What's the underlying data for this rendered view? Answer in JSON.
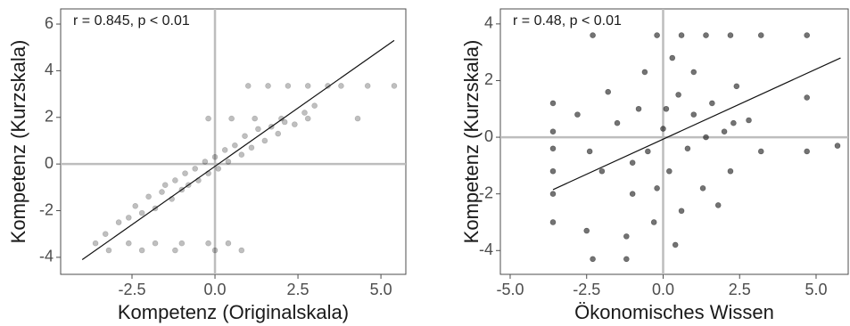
{
  "chart_data": [
    {
      "type": "scatter",
      "annotation": "r = 0.845, p < 0.01",
      "x_label": "Kompetenz (Originalskala)",
      "y_label": "Kompetenz (Kurzskala)",
      "xlim": [
        -4.65,
        5.75
      ],
      "ylim": [
        -4.73,
        6.65
      ],
      "xticks": [
        -2.5,
        {
          "value": 0,
          "label": "0.0"
        },
        2.5,
        {
          "value": 5,
          "label": "5.0"
        }
      ],
      "yticks": [
        -4,
        -2,
        0,
        2,
        4,
        6
      ],
      "reference_x": 0,
      "reference_y": 0,
      "color": "#000000",
      "opacity": 0.25,
      "x": [
        -3.6,
        -3.3,
        -2.9,
        -2.6,
        -2.4,
        -2.2,
        -2.0,
        -1.8,
        -1.6,
        -1.5,
        -1.3,
        -1.2,
        -1.0,
        -0.9,
        -0.8,
        -0.6,
        -0.5,
        -0.3,
        -0.2,
        0.0,
        0.1,
        0.3,
        0.4,
        0.6,
        0.8,
        0.9,
        1.1,
        1.3,
        1.5,
        1.7,
        1.9,
        2.1,
        2.4,
        2.7,
        3.0,
        1.0,
        1.6,
        2.2,
        2.8,
        3.4,
        3.8,
        -0.2,
        0.5,
        1.2,
        2.0,
        2.8,
        -2.6,
        -1.8,
        -1.0,
        -0.2,
        0.4,
        -3.2,
        -2.2,
        -1.2,
        0.0,
        0.8,
        4.6,
        5.4,
        4.3
      ],
      "values": [
        -3.4,
        -3.0,
        -2.5,
        -2.3,
        -1.8,
        -2.1,
        -1.4,
        -1.9,
        -1.2,
        -0.9,
        -1.5,
        -0.7,
        -1.1,
        -0.4,
        -0.9,
        -0.2,
        -0.7,
        0.1,
        -0.4,
        0.3,
        -0.2,
        0.6,
        0.1,
        0.8,
        0.4,
        1.2,
        0.7,
        1.5,
        1.0,
        1.6,
        1.3,
        1.8,
        1.7,
        2.2,
        2.5,
        3.35,
        3.35,
        3.35,
        3.35,
        3.35,
        3.35,
        1.95,
        1.95,
        1.95,
        1.95,
        1.95,
        -3.4,
        -3.4,
        -3.4,
        -3.4,
        -3.4,
        -3.7,
        -3.7,
        -3.7,
        -3.7,
        -3.7,
        3.35,
        3.35,
        1.95
      ],
      "fit_line": {
        "x": [
          -4.0,
          5.4
        ],
        "y": [
          -4.1,
          5.3
        ]
      }
    },
    {
      "type": "scatter",
      "annotation": "r = 0.48, p < 0.01",
      "x_label": "Ökonomisches Wissen",
      "y_label": "Kompetenz (Kurzskala)",
      "xlim": [
        -5.32,
        6.05
      ],
      "ylim": [
        -4.84,
        4.53
      ],
      "xticks": [
        {
          "value": -5,
          "label": "-5.0"
        },
        -2.5,
        {
          "value": 0,
          "label": "0.0"
        },
        2.5,
        {
          "value": 5,
          "label": "5.0"
        }
      ],
      "yticks": [
        -4,
        -2,
        0,
        2,
        4
      ],
      "reference_x": 0,
      "reference_y": 0,
      "color": "#000000",
      "opacity": 0.55,
      "x": [
        -2.0,
        -1.5,
        -1.0,
        -0.8,
        -0.5,
        -0.3,
        0,
        0.2,
        0.5,
        0.8,
        1.0,
        1.3,
        1.6,
        2.0,
        2.4,
        2.8,
        3.2,
        -1.2,
        0.4,
        1.0,
        -0.6,
        0.3,
        -2.4,
        -2.8,
        1.8,
        -1.8,
        0.6,
        2.2,
        -0.2,
        1.4,
        -1.0,
        0.1,
        -2.3,
        -0.2,
        0.6,
        1.4,
        2.2,
        3.2,
        4.7,
        -3.6,
        -3.6,
        -3.6,
        -3.6,
        -3.6,
        -3.6,
        4.7,
        4.7,
        5.7,
        -2.3,
        -1.2,
        2.3,
        -2.5
      ],
      "values": [
        -1.2,
        0.5,
        -2.0,
        1.0,
        -0.5,
        -3.0,
        0.3,
        -1.2,
        1.5,
        -0.4,
        0.8,
        -1.8,
        1.2,
        0.2,
        1.8,
        0.6,
        -0.5,
        -3.5,
        -3.8,
        2.3,
        2.3,
        2.8,
        -0.5,
        0.8,
        -2.4,
        1.6,
        -2.6,
        -1.2,
        -1.8,
        0.0,
        -0.9,
        1.0,
        3.6,
        3.6,
        3.6,
        3.6,
        3.6,
        3.6,
        3.6,
        -2.0,
        -1.2,
        -0.4,
        0.2,
        1.2,
        -3.0,
        1.4,
        -0.5,
        -0.3,
        -4.3,
        -4.3,
        0.5,
        -3.3
      ],
      "fit_line": {
        "x": [
          -3.6,
          5.8
        ],
        "y": [
          -1.85,
          2.8
        ]
      }
    }
  ]
}
